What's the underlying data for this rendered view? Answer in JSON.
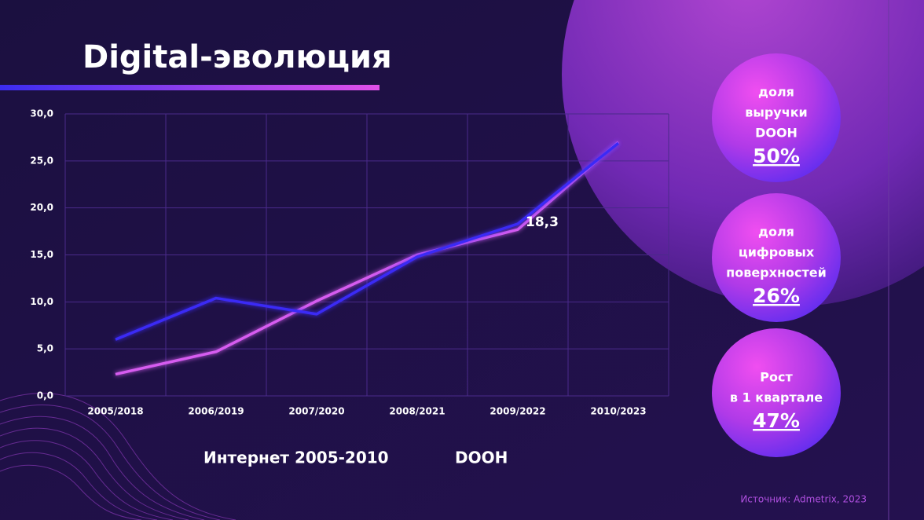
{
  "title": "Digital-эволюция",
  "chart_data": {
    "type": "line",
    "categories": [
      "2005/2018",
      "2006/2019",
      "2007/2020",
      "2008/2021",
      "2009/2022",
      "2010/2023"
    ],
    "series": [
      {
        "name": "Интернет 2005-2010",
        "color": "#d65bf0",
        "values": [
          2.3,
          4.7,
          10.1,
          15.0,
          17.7,
          27.0
        ]
      },
      {
        "name": "DOOH",
        "color": "#3a2cf5",
        "values": [
          6.0,
          10.4,
          8.7,
          14.8,
          18.3,
          26.9
        ],
        "value_labels": [
          null,
          null,
          null,
          null,
          "18,3",
          null
        ]
      }
    ],
    "ylim": [
      0,
      30
    ],
    "yticks": [
      {
        "value": 0,
        "label": "0,0"
      },
      {
        "value": 5,
        "label": "5,0"
      },
      {
        "value": 10,
        "label": "10,0"
      },
      {
        "value": 15,
        "label": "15,0"
      },
      {
        "value": 20,
        "label": "20,0"
      },
      {
        "value": 25,
        "label": "25,0"
      },
      {
        "value": 30,
        "label": "30,0"
      }
    ],
    "grid": true,
    "legend": "bottom"
  },
  "callouts": [
    {
      "lines": [
        "доля",
        "выручки",
        "DOOH"
      ],
      "value": "50%"
    },
    {
      "lines": [
        "доля",
        "цифровых",
        "поверхностей"
      ],
      "value": "26%"
    },
    {
      "lines": [
        "Рост",
        "в 1 квартале"
      ],
      "value": "47%"
    }
  ],
  "source": "Источник: Admetrix, 2023"
}
